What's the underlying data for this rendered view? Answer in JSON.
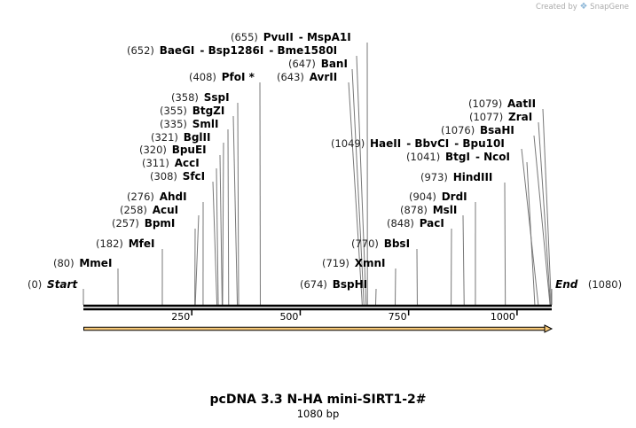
{
  "watermark": {
    "text": "Created by",
    "brand": "SnapGene",
    "icon": "snapgene-logo-icon"
  },
  "map": {
    "title": "pcDNA 3.3 N-HA mini-SIRT1-2#",
    "length_label": "1080 bp",
    "length": 1080,
    "ticks": [
      {
        "pos": 250,
        "label": "250"
      },
      {
        "pos": 500,
        "label": "500"
      },
      {
        "pos": 750,
        "label": "750"
      },
      {
        "pos": 1000,
        "label": "1000"
      }
    ],
    "feature": {
      "start": 1,
      "end": 1080,
      "color": "#f7c978",
      "direction": "forward"
    },
    "sites": [
      {
        "pos": 0,
        "pos_label": "(0)",
        "names": [
          "Start"
        ],
        "terminal": true
      },
      {
        "pos": 1080,
        "pos_label": "(1080)",
        "names": [
          "End"
        ],
        "terminal": true
      },
      {
        "pos": 80,
        "pos_label": "(80)",
        "names": [
          "MmeI"
        ]
      },
      {
        "pos": 182,
        "pos_label": "(182)",
        "names": [
          "MfeI"
        ]
      },
      {
        "pos": 257,
        "pos_label": "(257)",
        "names": [
          "BpmI"
        ]
      },
      {
        "pos": 258,
        "pos_label": "(258)",
        "names": [
          "AcuI"
        ]
      },
      {
        "pos": 276,
        "pos_label": "(276)",
        "names": [
          "AhdI"
        ]
      },
      {
        "pos": 308,
        "pos_label": "(308)",
        "names": [
          "SfcI"
        ]
      },
      {
        "pos": 311,
        "pos_label": "(311)",
        "names": [
          "AccI"
        ]
      },
      {
        "pos": 320,
        "pos_label": "(320)",
        "names": [
          "BpuEI"
        ]
      },
      {
        "pos": 321,
        "pos_label": "(321)",
        "names": [
          "BglII"
        ]
      },
      {
        "pos": 335,
        "pos_label": "(335)",
        "names": [
          "SmlI"
        ]
      },
      {
        "pos": 355,
        "pos_label": "(355)",
        "names": [
          "BtgZI"
        ]
      },
      {
        "pos": 358,
        "pos_label": "(358)",
        "names": [
          "SspI"
        ]
      },
      {
        "pos": 408,
        "pos_label": "(408)",
        "names": [
          "PfoI *"
        ]
      },
      {
        "pos": 643,
        "pos_label": "(643)",
        "names": [
          "AvrII"
        ]
      },
      {
        "pos": 647,
        "pos_label": "(647)",
        "names": [
          "BanI"
        ]
      },
      {
        "pos": 652,
        "pos_label": "(652)",
        "names": [
          "BaeGI",
          "Bsp1286I",
          "Bme1580I"
        ]
      },
      {
        "pos": 655,
        "pos_label": "(655)",
        "names": [
          "PvuII",
          "MspA1I"
        ]
      },
      {
        "pos": 674,
        "pos_label": "(674)",
        "names": [
          "BspHI"
        ]
      },
      {
        "pos": 719,
        "pos_label": "(719)",
        "names": [
          "XmnI"
        ]
      },
      {
        "pos": 770,
        "pos_label": "(770)",
        "names": [
          "BbsI"
        ]
      },
      {
        "pos": 848,
        "pos_label": "(848)",
        "names": [
          "PacI"
        ]
      },
      {
        "pos": 878,
        "pos_label": "(878)",
        "names": [
          "MslI"
        ]
      },
      {
        "pos": 904,
        "pos_label": "(904)",
        "names": [
          "DrdI"
        ]
      },
      {
        "pos": 973,
        "pos_label": "(973)",
        "names": [
          "HindIII"
        ]
      },
      {
        "pos": 1041,
        "pos_label": "(1041)",
        "names": [
          "BtgI",
          "NcoI"
        ]
      },
      {
        "pos": 1049,
        "pos_label": "(1049)",
        "names": [
          "HaeII",
          "BbvCI",
          "Bpu10I"
        ]
      },
      {
        "pos": 1076,
        "pos_label": "(1076)",
        "names": [
          "BsaHI"
        ]
      },
      {
        "pos": 1077,
        "pos_label": "(1077)",
        "names": [
          "ZraI"
        ]
      },
      {
        "pos": 1079,
        "pos_label": "(1079)",
        "names": [
          "AatII"
        ]
      }
    ]
  }
}
